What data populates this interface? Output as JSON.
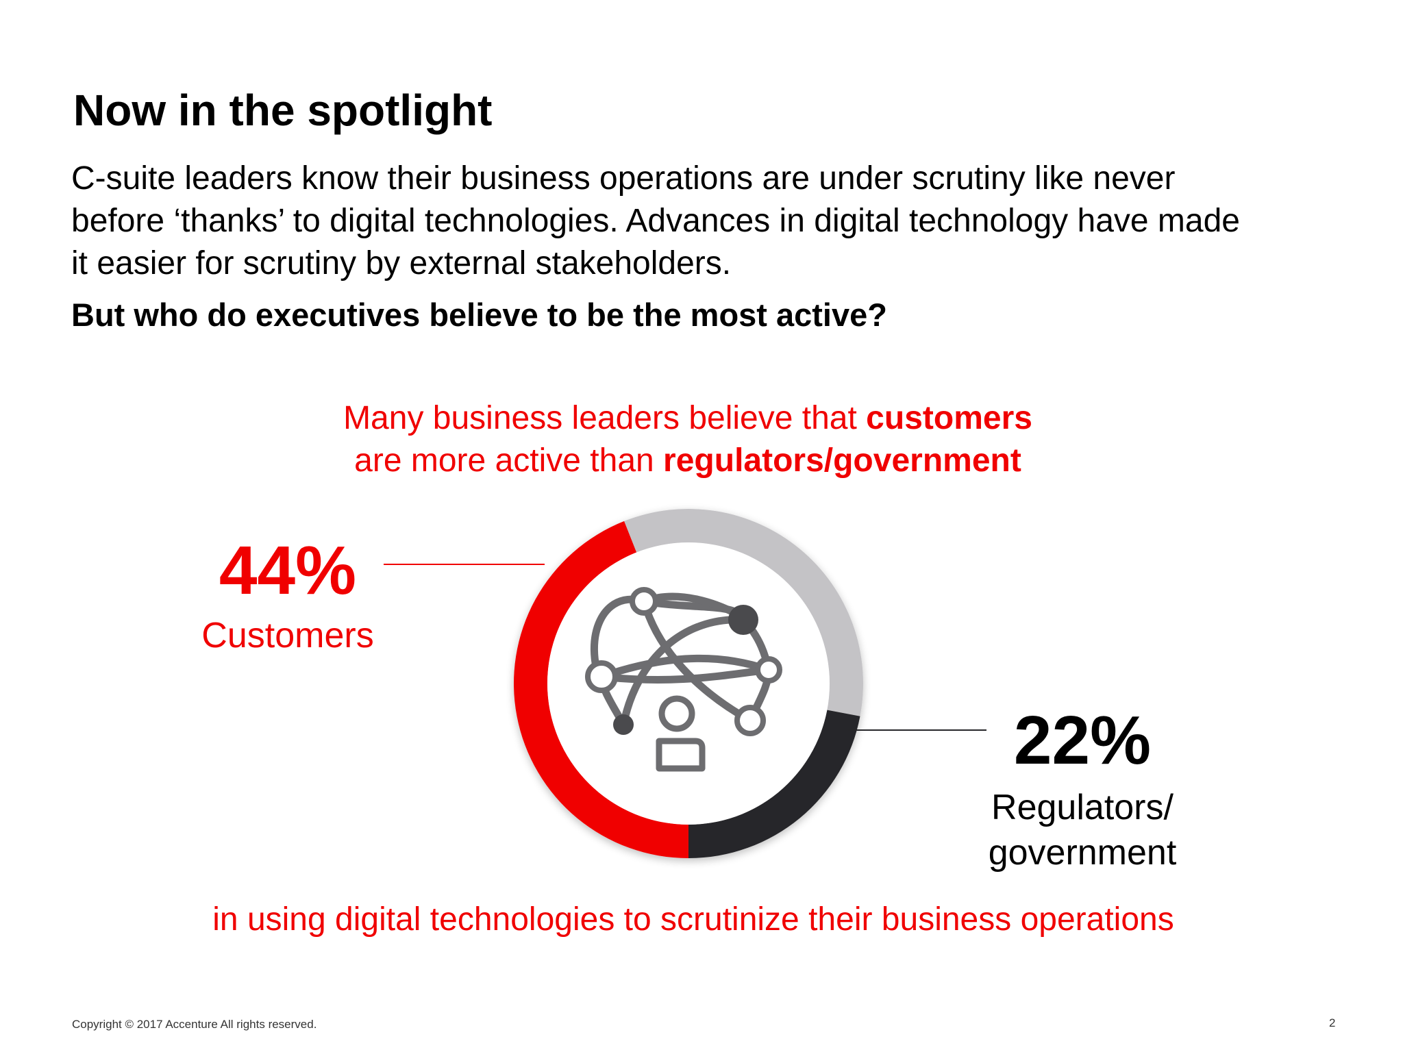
{
  "title": "Now in the spotlight",
  "intro_lines": [
    "C-suite leaders know their business operations are under scrutiny like never",
    "before ‘thanks’ to digital technologies. Advances in digital technology have made",
    "it easier for scrutiny by external stakeholders."
  ],
  "question": "But who do executives believe to be the most active?",
  "headline": {
    "line1_pre": "Many business leaders believe that ",
    "line1_bold": "customers",
    "line2_pre": "are more active than ",
    "line2_bold": "regulators/government"
  },
  "closing": "in using digital technologies to scrutinize their business operations",
  "footer": {
    "copyright": "Copyright © 2017 Accenture  All rights reserved.",
    "page_number": "2"
  },
  "colors": {
    "customers": "#f00000",
    "regulators": "#262629",
    "rest": "#c4c3c6"
  },
  "icons": [
    "network-globe-icon",
    "person-icon"
  ],
  "chart_data": {
    "type": "pie",
    "style": "donut",
    "series": [
      {
        "value": 44,
        "display": "44%",
        "label": "Customers",
        "color": "#f00000"
      },
      {
        "value": 22,
        "display": "22%",
        "label": "Regulators/\ngovernment",
        "color": "#262629"
      }
    ],
    "remainder": {
      "value": 34,
      "color": "#c4c3c6"
    },
    "title": "",
    "legend": "none"
  }
}
